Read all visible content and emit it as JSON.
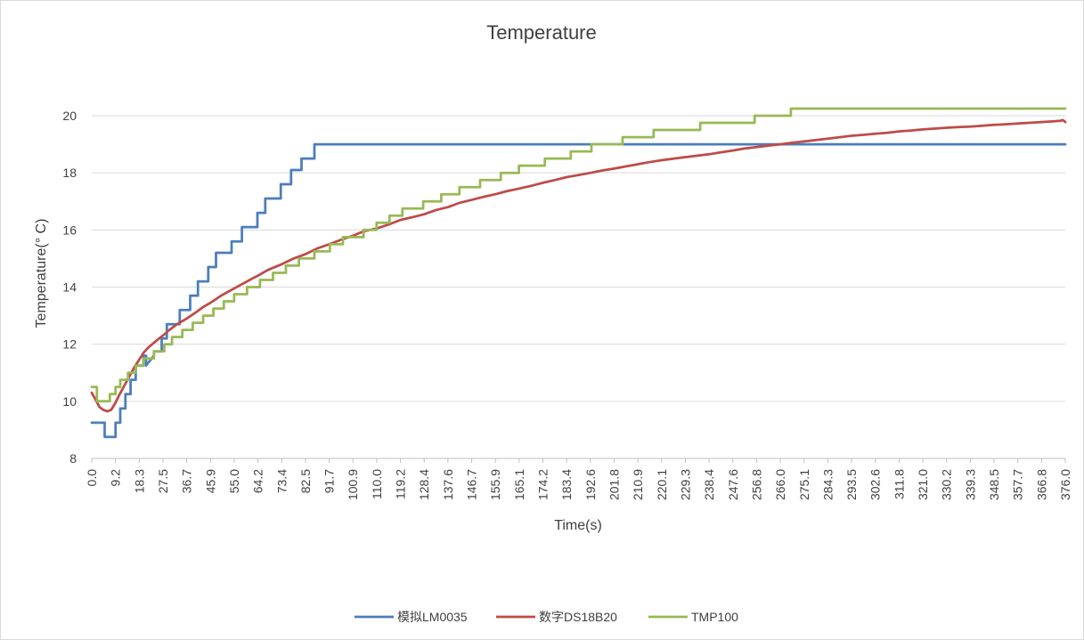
{
  "chart_data": {
    "type": "line",
    "title": "Temperature",
    "xlabel": "Time(s)",
    "ylabel": "Temperature(°  C)",
    "xlim": [
      0,
      376
    ],
    "ylim": [
      8,
      20
    ],
    "y_ticks": [
      8,
      10,
      12,
      14,
      16,
      18,
      20
    ],
    "x_tick_labels": [
      "0.0",
      "9.2",
      "18.3",
      "27.5",
      "36.7",
      "45.9",
      "55.0",
      "64.2",
      "73.4",
      "82.5",
      "91.7",
      "100.9",
      "110.0",
      "119.2",
      "128.4",
      "137.6",
      "146.7",
      "155.9",
      "165.1",
      "174.2",
      "183.4",
      "192.6",
      "201.8",
      "210.9",
      "220.1",
      "229.3",
      "238.4",
      "247.6",
      "256.8",
      "266.0",
      "275.1",
      "284.3",
      "293.5",
      "302.6",
      "311.8",
      "321.0",
      "330.2",
      "339.3",
      "348.5",
      "357.7",
      "366.8",
      "376.0"
    ],
    "grid": "horizontal",
    "legend_position": "bottom",
    "series": [
      {
        "name": "模拟LM0035",
        "color": "#4a7ebb",
        "x": [
          0,
          2,
          3,
          5,
          5,
          9.2,
          9.2,
          11,
          11,
          13,
          13,
          15,
          15,
          17,
          17,
          20,
          20,
          21,
          21,
          24,
          24,
          27,
          27,
          29,
          29,
          31,
          31,
          32,
          33,
          34,
          34,
          38,
          38,
          41,
          41,
          45,
          45,
          48,
          48,
          54,
          54,
          58,
          58,
          64,
          64,
          67,
          67,
          73,
          73,
          77,
          77,
          81,
          81,
          86,
          86,
          94,
          94,
          96,
          96,
          108,
          108,
          109,
          110,
          111,
          111,
          124,
          124,
          134,
          134,
          142,
          142,
          160,
          160,
          161,
          162,
          164,
          164,
          182,
          182,
          183,
          184,
          186,
          186,
          209,
          209,
          210,
          211,
          213,
          213,
          214,
          215,
          216,
          216,
          240,
          240,
          244,
          244,
          245,
          246,
          248,
          248,
          251,
          251,
          252,
          253,
          255,
          255,
          294,
          294,
          295,
          296,
          297,
          298,
          299,
          300,
          301,
          302,
          303,
          304,
          310,
          310,
          321,
          321,
          322,
          322,
          365,
          365,
          366,
          367,
          368,
          369,
          370,
          371,
          372,
          373,
          374,
          375,
          376
        ],
        "values": [
          9.25,
          9.25,
          9.25,
          9.25,
          8.75,
          8.75,
          9.25,
          9.25,
          9.75,
          9.75,
          10.25,
          10.25,
          10.75,
          10.75,
          11.25,
          11.25,
          11.6,
          11.6,
          11.25,
          11.6,
          11.75,
          11.75,
          12.2,
          12.2,
          12.7,
          12.7,
          12.7,
          12.7,
          12.7,
          12.7,
          13.2,
          13.2,
          13.7,
          13.7,
          14.2,
          14.2,
          14.7,
          14.7,
          15.2,
          15.2,
          15.6,
          15.6,
          16.1,
          16.1,
          16.6,
          16.6,
          17.1,
          17.1,
          17.6,
          17.6,
          18.1,
          18.1,
          18.5,
          18.5,
          19.0,
          19.0,
          19.0,
          19.0,
          19.0,
          19.0,
          19.0,
          19.0,
          19.0,
          19.0,
          19.0,
          19.0,
          19.0,
          19.0,
          19.0,
          19.0,
          19.0,
          19.0,
          19.0,
          19.0,
          19.0,
          19.0,
          19.0,
          19.0,
          19.0,
          19.0,
          19.0,
          19.0,
          19.0,
          19.0,
          19.0,
          19.0,
          19.0,
          19.0,
          19.0,
          19.0,
          19.0,
          19.0,
          19.0,
          19.0,
          19.0,
          19.0,
          19.0,
          19.0,
          19.0,
          19.0,
          19.0,
          19.0,
          19.0,
          19.0,
          19.0,
          19.0,
          19.0,
          19.0,
          19.0,
          19.0,
          19.0,
          19.0,
          19.0,
          19.0,
          19.0,
          19.0,
          19.0,
          19.0,
          19.0,
          19.0,
          19.0,
          19.0,
          19.0,
          19.0,
          19.0,
          19.0,
          19.0,
          19.0,
          19.0,
          19.0,
          19.0,
          19.0,
          19.0,
          19.0,
          19.0,
          19.0,
          19.0,
          19.0
        ]
      },
      {
        "name": "数字DS18B20",
        "color": "#be4b48",
        "x": [
          0,
          1.5,
          3,
          4.5,
          6,
          7.5,
          9.2,
          10.5,
          12,
          13.5,
          15,
          16.5,
          18.3,
          20,
          22,
          24,
          26,
          27.5,
          30,
          33,
          36.7,
          40,
          43,
          45.9,
          50,
          55,
          58,
          62,
          64.2,
          68,
          73.4,
          78,
          82.5,
          87,
          91.7,
          96,
          100.9,
          105,
          110,
          115,
          119.2,
          124,
          128.4,
          133,
          137.6,
          142,
          146.7,
          151,
          155.9,
          160,
          165.1,
          170,
          174.2,
          179,
          183.4,
          188,
          192.6,
          197,
          201.8,
          206,
          210.9,
          215,
          220.1,
          225,
          229.3,
          234,
          238.4,
          243,
          247.6,
          252,
          256.8,
          261,
          266,
          270,
          275.1,
          280,
          284.3,
          289,
          293.5,
          298,
          302.6,
          307,
          311.8,
          316,
          321,
          326,
          330.2,
          335,
          339.3,
          344,
          348.5,
          353,
          357.7,
          362,
          366.8,
          371,
          374,
          375,
          376
        ],
        "values": [
          10.3,
          10.05,
          9.8,
          9.7,
          9.65,
          9.7,
          9.95,
          10.2,
          10.45,
          10.7,
          10.95,
          11.2,
          11.45,
          11.7,
          11.9,
          12.05,
          12.2,
          12.3,
          12.5,
          12.7,
          12.9,
          13.1,
          13.3,
          13.45,
          13.7,
          13.95,
          14.1,
          14.3,
          14.4,
          14.6,
          14.8,
          15.0,
          15.15,
          15.35,
          15.5,
          15.65,
          15.8,
          15.95,
          16.05,
          16.2,
          16.35,
          16.45,
          16.55,
          16.7,
          16.8,
          16.95,
          17.05,
          17.15,
          17.25,
          17.35,
          17.45,
          17.55,
          17.65,
          17.75,
          17.85,
          17.92,
          18.0,
          18.08,
          18.15,
          18.22,
          18.3,
          18.37,
          18.44,
          18.5,
          18.55,
          18.6,
          18.65,
          18.72,
          18.78,
          18.85,
          18.9,
          18.95,
          19.0,
          19.05,
          19.1,
          19.15,
          19.2,
          19.25,
          19.3,
          19.33,
          19.37,
          19.4,
          19.45,
          19.48,
          19.52,
          19.55,
          19.58,
          19.6,
          19.62,
          19.65,
          19.68,
          19.7,
          19.73,
          19.75,
          19.78,
          19.8,
          19.82,
          19.85,
          19.78
        ]
      },
      {
        "name": "TMP100",
        "color": "#98b954",
        "x": [
          0,
          2,
          2,
          7,
          7,
          9.2,
          9.2,
          11,
          11,
          14,
          14,
          17,
          17,
          20,
          20,
          24,
          24,
          28,
          28,
          31,
          31,
          35,
          35,
          39,
          39,
          43,
          43,
          47,
          47,
          51,
          51,
          55,
          55,
          60,
          60,
          65,
          65,
          70,
          70,
          75,
          75,
          80,
          80,
          86,
          86,
          92,
          92,
          97,
          97,
          105,
          105,
          110,
          110,
          115,
          115,
          120,
          120,
          128,
          128,
          135,
          135,
          142,
          142,
          150,
          150,
          158,
          158,
          165,
          165,
          175,
          175,
          185,
          185,
          193,
          193,
          205,
          205,
          217,
          217,
          235,
          235,
          256,
          256,
          270,
          270,
          292,
          292,
          319,
          319,
          358,
          358,
          376
        ],
        "values": [
          10.5,
          10.5,
          10.0,
          10.0,
          10.25,
          10.25,
          10.5,
          10.5,
          10.75,
          10.75,
          11.0,
          11.0,
          11.25,
          11.25,
          11.5,
          11.5,
          11.75,
          11.75,
          12.0,
          12.0,
          12.25,
          12.25,
          12.5,
          12.5,
          12.75,
          12.75,
          13.0,
          13.0,
          13.25,
          13.25,
          13.5,
          13.5,
          13.75,
          13.75,
          14.0,
          14.0,
          14.25,
          14.25,
          14.5,
          14.5,
          14.75,
          14.75,
          15.0,
          15.0,
          15.25,
          15.25,
          15.5,
          15.5,
          15.75,
          15.75,
          16.0,
          16.0,
          16.25,
          16.25,
          16.5,
          16.5,
          16.75,
          16.75,
          17.0,
          17.0,
          17.25,
          17.25,
          17.5,
          17.5,
          17.75,
          17.75,
          18.0,
          18.0,
          18.25,
          18.25,
          18.5,
          18.5,
          18.75,
          18.75,
          19.0,
          19.0,
          19.25,
          19.25,
          19.5,
          19.5,
          19.75,
          19.75,
          20.0,
          20.0,
          20.25,
          20.25,
          20.25,
          20.25,
          20.25,
          20.25,
          20.25,
          20.25
        ]
      }
    ]
  }
}
